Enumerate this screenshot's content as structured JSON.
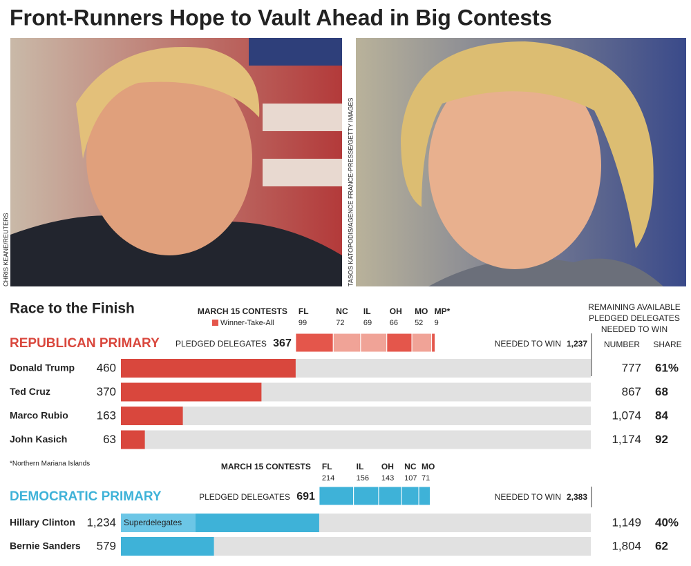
{
  "title": "Front-Runners Hope to Vault Ahead in Big Contests",
  "photo_credits": [
    "CHRIS KEANE/REUTERS",
    "TASOS KATOPODIS/AGENCE FRANCE-PRESSE/GETTY IMAGES"
  ],
  "section_title": "Race to the Finish",
  "contests_heading": "MARCH 15 CONTESTS",
  "legend": "Winner-Take-All",
  "right_header": [
    "REMAINING AVAILABLE",
    "PLEDGED DELEGATES",
    "NEEDED TO WIN"
  ],
  "columns": [
    "NUMBER",
    "SHARE"
  ],
  "footnote": "*Northern Mariana Islands",
  "pledged_label": "PLEDGED DELEGATES",
  "needed_label": "NEEDED TO WIN",
  "superdelegates_label": "Superdelegates",
  "primaries": [
    {
      "name": "REPUBLICAN PRIMARY",
      "color": "#d9473d",
      "contest_color": "#f0a397",
      "wta_color": "#e4564b",
      "pledged": 367,
      "needed": 1237,
      "needed_display": "1,237",
      "contests": [
        {
          "state": "FL",
          "delegates": 99,
          "winner_take_all": true
        },
        {
          "state": "NC",
          "delegates": 72,
          "winner_take_all": false
        },
        {
          "state": "IL",
          "delegates": 69,
          "winner_take_all": false
        },
        {
          "state": "OH",
          "delegates": 66,
          "winner_take_all": true
        },
        {
          "state": "MO",
          "delegates": 52,
          "winner_take_all": false
        },
        {
          "state": "MP*",
          "delegates": 9,
          "winner_take_all": true
        }
      ],
      "candidates": [
        {
          "name": "Donald Trump",
          "delegates": 460,
          "remaining": "777",
          "share": "61%"
        },
        {
          "name": "Ted Cruz",
          "delegates": 370,
          "remaining": "867",
          "share": "68"
        },
        {
          "name": "Marco Rubio",
          "delegates": 163,
          "remaining": "1,074",
          "share": "84"
        },
        {
          "name": "John Kasich",
          "delegates": 63,
          "remaining": "1,174",
          "share": "92"
        }
      ]
    },
    {
      "name": "DEMOCRATIC PRIMARY",
      "color": "#3eb2d8",
      "contest_color": "#3eb2d8",
      "wta_color": "#3eb2d8",
      "pledged": 691,
      "needed": 2383,
      "needed_display": "2,383",
      "contests": [
        {
          "state": "FL",
          "delegates": 214,
          "winner_take_all": false
        },
        {
          "state": "IL",
          "delegates": 156,
          "winner_take_all": false
        },
        {
          "state": "OH",
          "delegates": 143,
          "winner_take_all": false
        },
        {
          "state": "NC",
          "delegates": 107,
          "winner_take_all": false
        },
        {
          "state": "MO",
          "delegates": 71,
          "winner_take_all": false
        }
      ],
      "candidates": [
        {
          "name": "Hillary Clinton",
          "delegates": 1234,
          "delegates_label": "1,234",
          "remaining": "1,149",
          "share": "40%"
        },
        {
          "name": "Bernie Sanders",
          "delegates": 579,
          "remaining": "1,804",
          "share": "62"
        }
      ]
    }
  ]
}
